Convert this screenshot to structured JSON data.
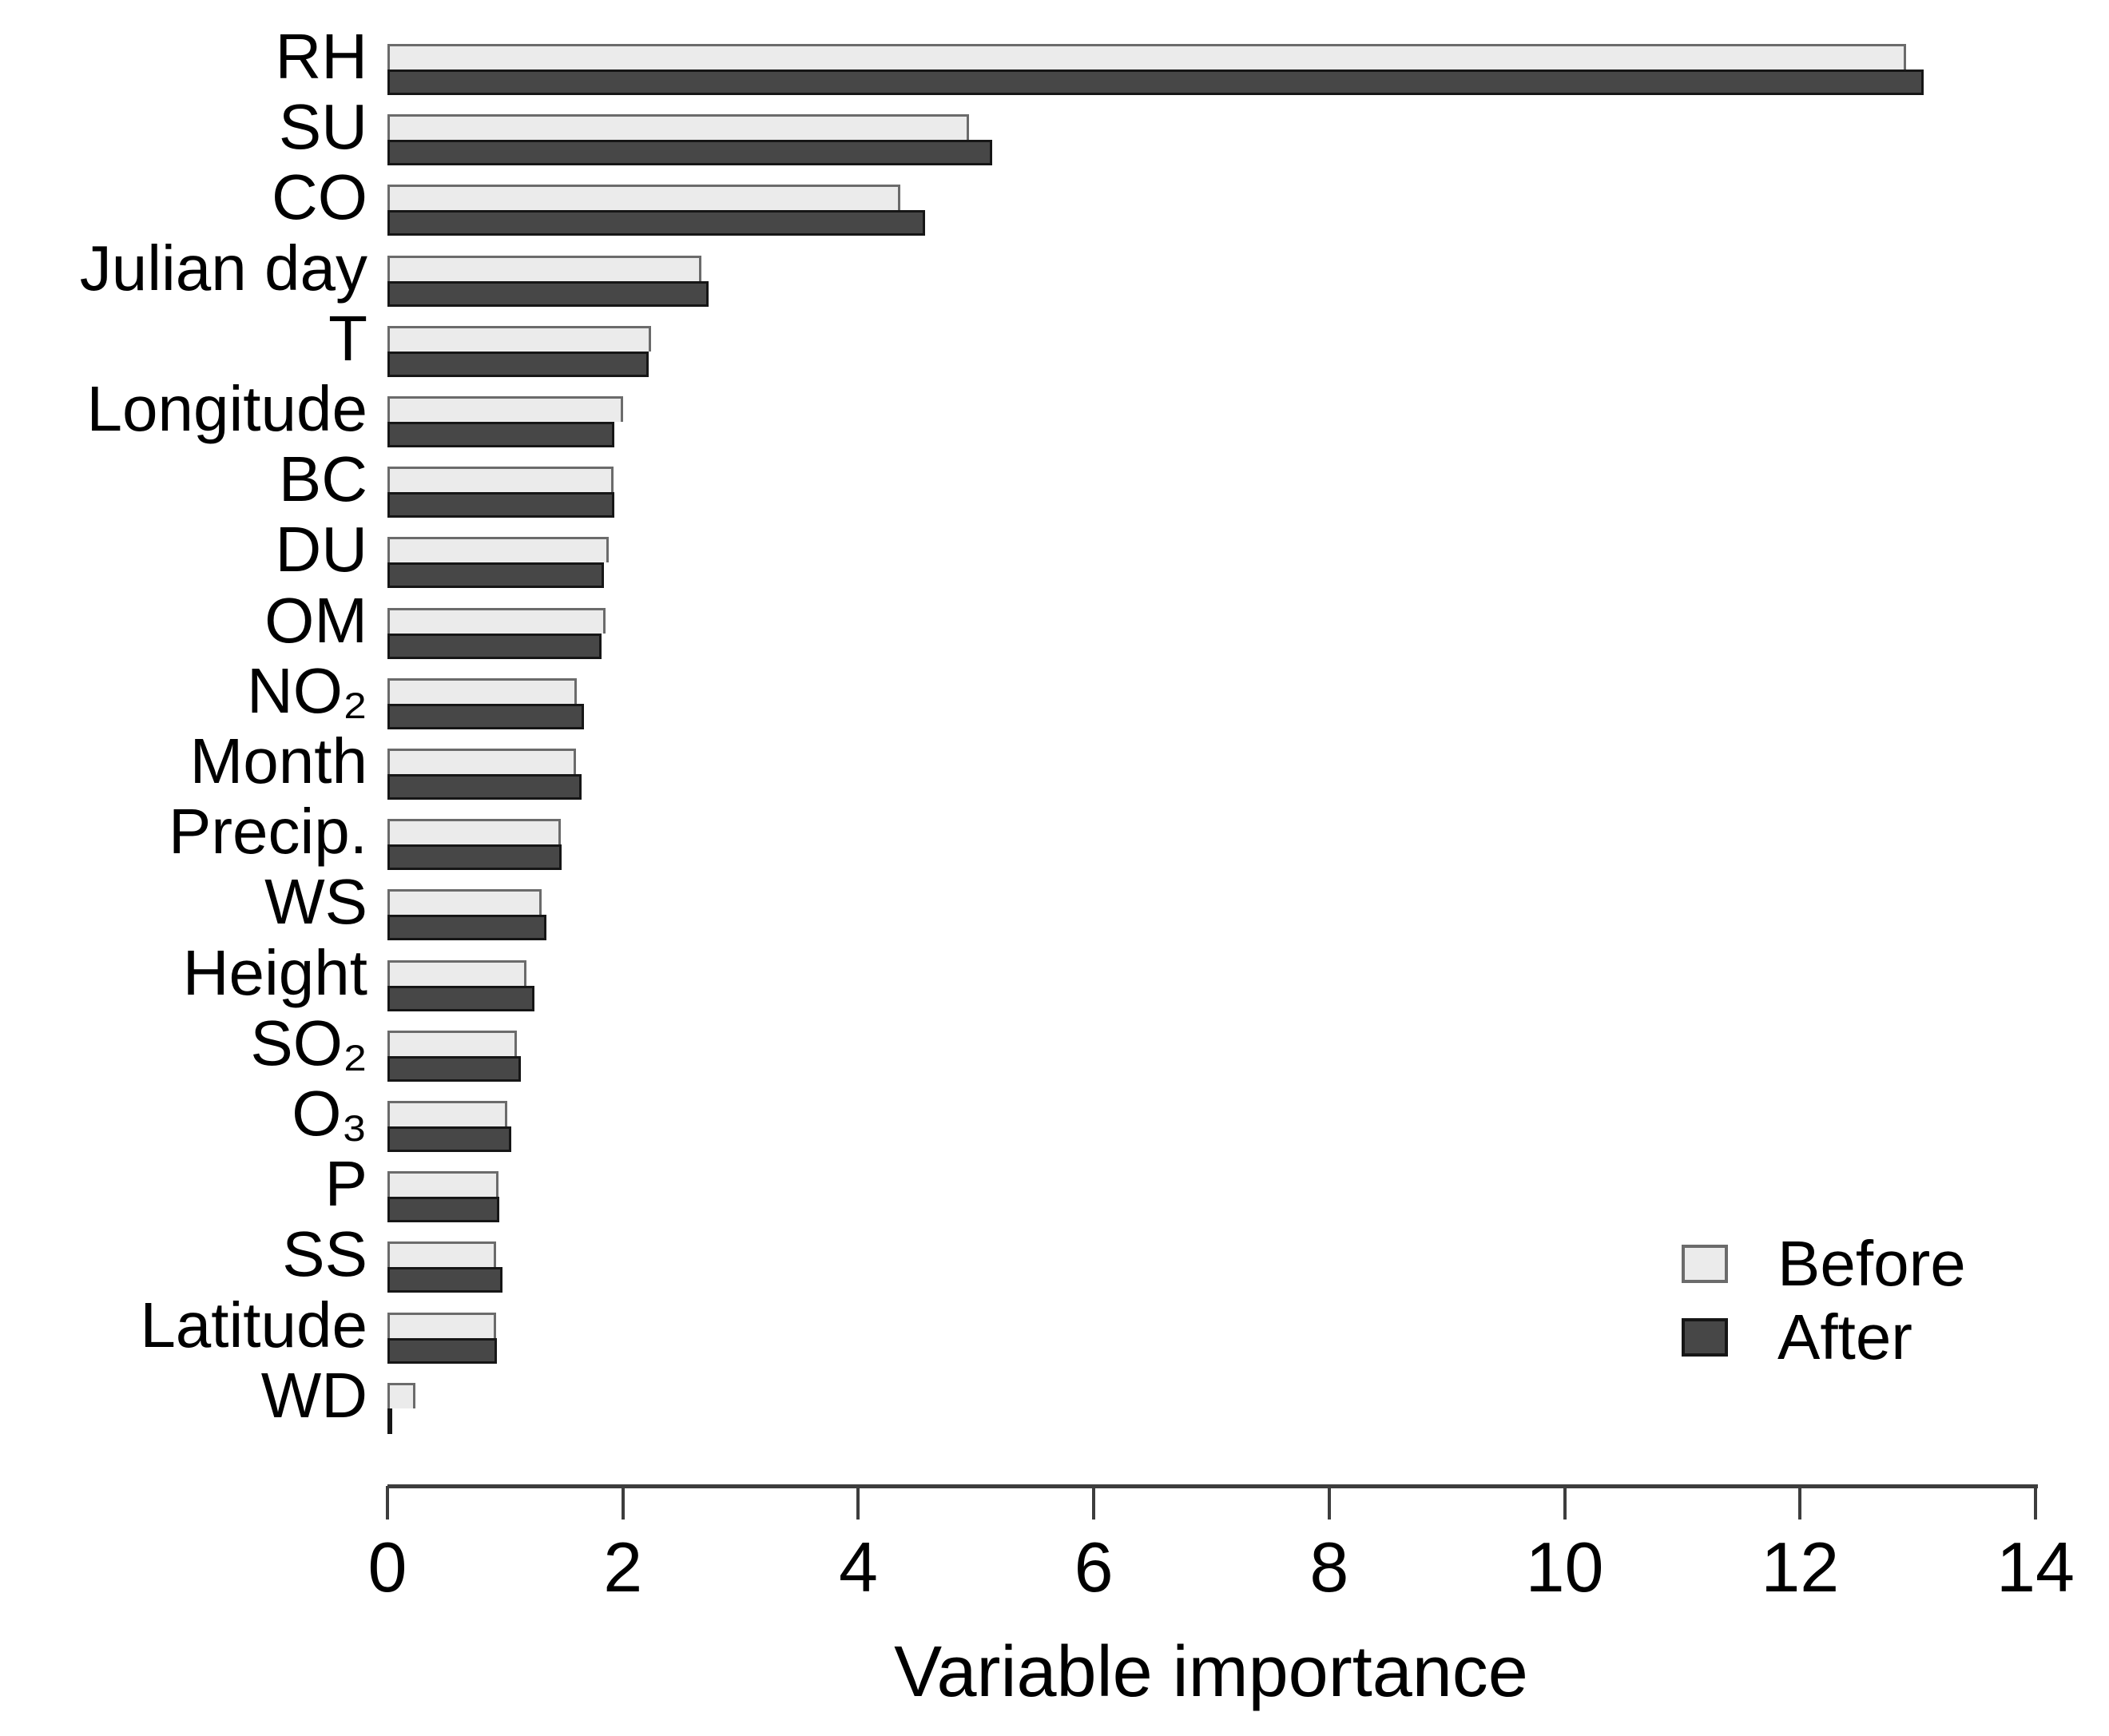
{
  "figure": {
    "background": "#ffffff",
    "text_color": "#000000",
    "axis_color": "#3d3d3d"
  },
  "chart_data": {
    "type": "bar",
    "orientation": "horizontal",
    "title": "",
    "xlabel": "Variable importance",
    "ylabel": "",
    "xlim": [
      0,
      14
    ],
    "x_ticks": [
      0,
      2,
      4,
      6,
      8,
      10,
      12,
      14
    ],
    "grid": false,
    "legend_position": "bottom-right",
    "categories": [
      "RH",
      "SU",
      "CO",
      "Julian day",
      "T",
      "Longitude",
      "BC",
      "DU",
      "OM",
      "NO₂",
      "Month",
      "Precip.",
      "WS",
      "Height",
      "SO₂",
      "O₃",
      "P",
      "SS",
      "Latitude",
      "WD"
    ],
    "series": [
      {
        "name": "Before",
        "fill": "#ebebeb",
        "stroke": "#6b6b6b",
        "values": [
          12.9,
          4.94,
          4.36,
          2.67,
          2.24,
          2.0,
          1.92,
          1.88,
          1.85,
          1.61,
          1.6,
          1.47,
          1.31,
          1.18,
          1.1,
          1.02,
          0.94,
          0.92,
          0.92,
          0.24
        ]
      },
      {
        "name": "After",
        "fill": "#474747",
        "stroke": "#161616",
        "values": [
          13.05,
          5.14,
          4.57,
          2.73,
          2.22,
          1.93,
          1.93,
          1.84,
          1.82,
          1.67,
          1.65,
          1.48,
          1.35,
          1.25,
          1.13,
          1.05,
          0.95,
          0.98,
          0.93,
          0.02
        ]
      }
    ]
  }
}
